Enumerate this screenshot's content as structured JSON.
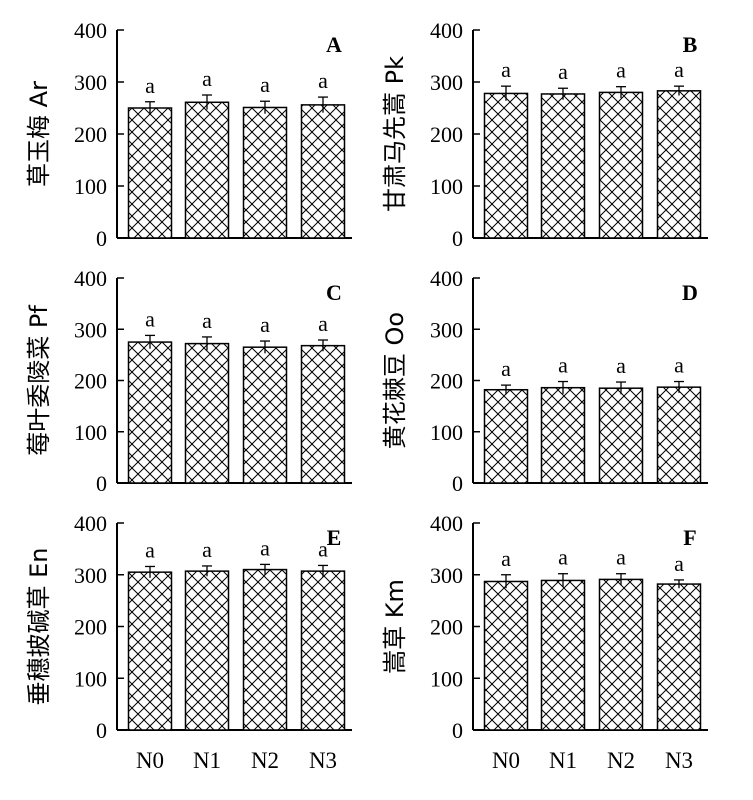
{
  "chart_data": [
    {
      "type": "bar",
      "panel": "A",
      "ylabel": "草玉梅 Ar",
      "categories": [
        "N0",
        "N1",
        "N2",
        "N3"
      ],
      "values": [
        250,
        261,
        251,
        256
      ],
      "errors": [
        12,
        14,
        12,
        15
      ],
      "significance": [
        "a",
        "a",
        "a",
        "a"
      ],
      "ylim": [
        0,
        400
      ],
      "yticks": [
        0,
        100,
        200,
        300,
        400
      ]
    },
    {
      "type": "bar",
      "panel": "B",
      "ylabel": "甘肃马先蒿 Pk",
      "categories": [
        "N0",
        "N1",
        "N2",
        "N3"
      ],
      "values": [
        278,
        277,
        280,
        283
      ],
      "errors": [
        14,
        11,
        11,
        9
      ],
      "significance": [
        "a",
        "a",
        "a",
        "a"
      ],
      "ylim": [
        0,
        400
      ],
      "yticks": [
        0,
        100,
        200,
        300,
        400
      ]
    },
    {
      "type": "bar",
      "panel": "C",
      "ylabel": "莓叶委陵菜 Pf",
      "categories": [
        "N0",
        "N1",
        "N2",
        "N3"
      ],
      "values": [
        275,
        272,
        265,
        268
      ],
      "errors": [
        13,
        13,
        12,
        11
      ],
      "significance": [
        "a",
        "a",
        "a",
        "a"
      ],
      "ylim": [
        0,
        400
      ],
      "yticks": [
        0,
        100,
        200,
        300,
        400
      ]
    },
    {
      "type": "bar",
      "panel": "D",
      "ylabel": "黄花棘豆 Oo",
      "categories": [
        "N0",
        "N1",
        "N2",
        "N3"
      ],
      "values": [
        182,
        186,
        185,
        187
      ],
      "errors": [
        9,
        12,
        12,
        11
      ],
      "significance": [
        "a",
        "a",
        "a",
        "a"
      ],
      "ylim": [
        0,
        400
      ],
      "yticks": [
        0,
        100,
        200,
        300,
        400
      ]
    },
    {
      "type": "bar",
      "panel": "E",
      "ylabel": "垂穗披碱草 En",
      "categories": [
        "N0",
        "N1",
        "N2",
        "N3"
      ],
      "values": [
        305,
        307,
        310,
        307
      ],
      "errors": [
        11,
        10,
        10,
        11
      ],
      "significance": [
        "a",
        "a",
        "a",
        "a"
      ],
      "ylim": [
        0,
        400
      ],
      "yticks": [
        0,
        100,
        200,
        300,
        400
      ]
    },
    {
      "type": "bar",
      "panel": "F",
      "ylabel": "嵩草 Km",
      "categories": [
        "N0",
        "N1",
        "N2",
        "N3"
      ],
      "values": [
        287,
        289,
        291,
        282
      ],
      "errors": [
        13,
        13,
        11,
        8
      ],
      "significance": [
        "a",
        "a",
        "a",
        "a"
      ],
      "ylim": [
        0,
        400
      ],
      "yticks": [
        0,
        100,
        200,
        300,
        400
      ]
    }
  ]
}
